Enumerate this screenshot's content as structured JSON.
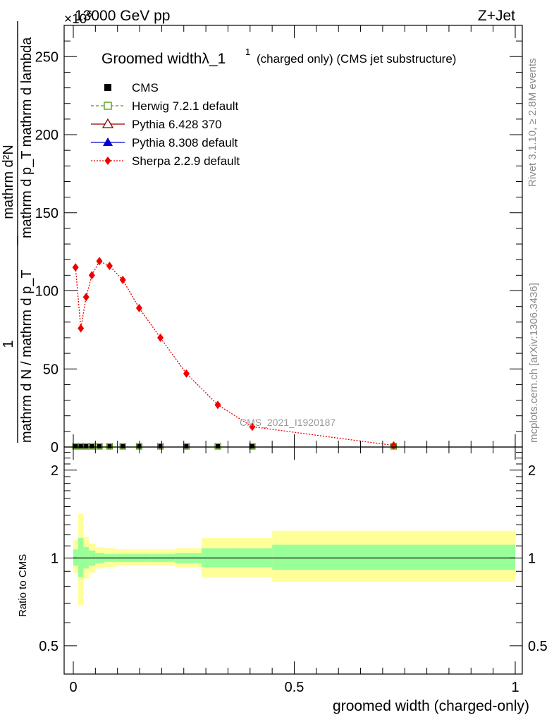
{
  "header": {
    "left": "13000 GeV pp",
    "right": "Z+Jet",
    "multiplier": "×10",
    "multiplier_exp": "6"
  },
  "side": {
    "rivet": "Rivet 3.1.10, ≥ 2.8M events",
    "mcplots": "mcplots.cern.ch [arXiv:1306.3436]"
  },
  "watermark": "CMS_2021_I1920187",
  "title": {
    "main": "Groomed widthλ_1",
    "sup": "1",
    "sub": "(charged only) (CMS jet substructure)"
  },
  "legend": [
    {
      "name": "CMS",
      "color": "#000000",
      "marker": "square-filled",
      "line": "none"
    },
    {
      "name": "Herwig 7.2.1 default",
      "color": "#4d9a00",
      "marker": "square-open",
      "line": "dashed"
    },
    {
      "name": "Pythia 6.428 370",
      "color": "#8b0000",
      "marker": "triangle-open",
      "line": "solid"
    },
    {
      "name": "Pythia 8.308 default",
      "color": "#0000cc",
      "marker": "triangle-filled",
      "line": "solid"
    },
    {
      "name": "Sherpa 2.2.9 default",
      "color": "#ee0000",
      "marker": "diamond-filled",
      "line": "dotted"
    }
  ],
  "ylabel": {
    "numerator_1": "1",
    "denominator_1": "mathrm d N / mathrm d p_T",
    "numerator_2": "mathrm d²N",
    "denominator_2": "mathrm d p_T mathrm d lambda"
  },
  "ratio_ylabel": "Ratio to CMS",
  "xlabel": "groomed width (charged-only)",
  "chart_data": {
    "type": "line",
    "main": {
      "xlim": [
        0,
        1
      ],
      "ylim": [
        0,
        270
      ],
      "y_ticks": [
        0,
        50,
        100,
        150,
        200,
        250
      ],
      "y_tick_labels": [
        "0",
        "50",
        "100",
        "150",
        "200",
        "250"
      ],
      "series": [
        {
          "name": "Sherpa 2.2.9 default",
          "x": [
            0.005,
            0.017,
            0.029,
            0.042,
            0.059,
            0.082,
            0.112,
            0.149,
            0.197,
            0.256,
            0.327,
            0.405,
            0.725
          ],
          "y": [
            115,
            76,
            96,
            110,
            119,
            116,
            107,
            89,
            70,
            47,
            27,
            13,
            1
          ]
        },
        {
          "name": "CMS",
          "x": [
            0.005,
            0.017,
            0.029,
            0.042,
            0.059,
            0.082,
            0.112,
            0.149,
            0.197,
            0.256,
            0.327,
            0.405,
            0.725
          ],
          "y": [
            0,
            0,
            0,
            0,
            0,
            0,
            0,
            0,
            0,
            0,
            0,
            0,
            0
          ]
        },
        {
          "name": "Herwig 7.2.1 default",
          "x": [
            0.005,
            0.017,
            0.029,
            0.042,
            0.059,
            0.082,
            0.112,
            0.149,
            0.197,
            0.256,
            0.327,
            0.405,
            0.725
          ],
          "y": [
            0,
            0,
            0,
            0,
            0,
            0,
            0,
            0,
            0,
            0,
            0,
            0,
            0
          ]
        }
      ]
    },
    "ratio": {
      "xlim": [
        0,
        1
      ],
      "ylim_log": [
        0.4,
        2.4
      ],
      "y_ticks": [
        0.5,
        1,
        2
      ],
      "y_tick_labels": [
        "0.5",
        "1",
        "2"
      ],
      "x_ticks": [
        0,
        0.5,
        1
      ],
      "x_tick_labels": [
        "0",
        "0.5",
        "1"
      ],
      "bins": [
        {
          "x0": 0.0,
          "x1": 0.011,
          "inner": [
            0.94,
            1.07
          ],
          "outer": [
            0.89,
            1.15
          ]
        },
        {
          "x0": 0.011,
          "x1": 0.023,
          "inner": [
            0.86,
            1.17
          ],
          "outer": [
            0.69,
            1.42
          ]
        },
        {
          "x0": 0.023,
          "x1": 0.035,
          "inner": [
            0.92,
            1.09
          ],
          "outer": [
            0.85,
            1.18
          ]
        },
        {
          "x0": 0.035,
          "x1": 0.05,
          "inner": [
            0.94,
            1.06
          ],
          "outer": [
            0.89,
            1.12
          ]
        },
        {
          "x0": 0.05,
          "x1": 0.07,
          "inner": [
            0.96,
            1.04
          ],
          "outer": [
            0.92,
            1.09
          ]
        },
        {
          "x0": 0.07,
          "x1": 0.097,
          "inner": [
            0.97,
            1.03
          ],
          "outer": [
            0.93,
            1.08
          ]
        },
        {
          "x0": 0.097,
          "x1": 0.13,
          "inner": [
            0.97,
            1.03
          ],
          "outer": [
            0.94,
            1.07
          ]
        },
        {
          "x0": 0.13,
          "x1": 0.175,
          "inner": [
            0.97,
            1.03
          ],
          "outer": [
            0.94,
            1.07
          ]
        },
        {
          "x0": 0.175,
          "x1": 0.23,
          "inner": [
            0.97,
            1.03
          ],
          "outer": [
            0.94,
            1.07
          ]
        },
        {
          "x0": 0.23,
          "x1": 0.29,
          "inner": [
            0.96,
            1.04
          ],
          "outer": [
            0.93,
            1.08
          ]
        },
        {
          "x0": 0.29,
          "x1": 0.37,
          "inner": [
            0.93,
            1.08
          ],
          "outer": [
            0.86,
            1.17
          ]
        },
        {
          "x0": 0.37,
          "x1": 0.45,
          "inner": [
            0.93,
            1.08
          ],
          "outer": [
            0.86,
            1.17
          ]
        },
        {
          "x0": 0.45,
          "x1": 1.0,
          "inner": [
            0.91,
            1.11
          ],
          "outer": [
            0.83,
            1.24
          ]
        }
      ],
      "reference": 1.0
    },
    "colors": {
      "inner_band": "#99ff99",
      "outer_band": "#ffff99",
      "sherpa": "#ee0000"
    }
  }
}
